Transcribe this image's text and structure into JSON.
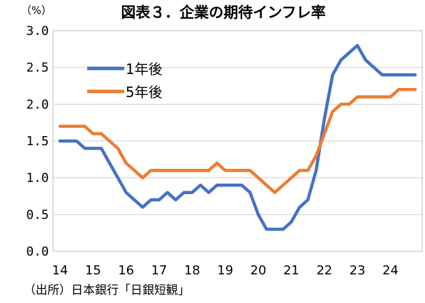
{
  "chart_data": {
    "type": "line",
    "title": "図表３．企業の期待インフレ率",
    "unit_label": "（%）",
    "source_note": "（出所）日本銀行「日銀短観」",
    "ylim": [
      0,
      3.0
    ],
    "y_ticks": [
      {
        "value": 0.0,
        "label": "0.0"
      },
      {
        "value": 0.5,
        "label": "0.5"
      },
      {
        "value": 1.0,
        "label": "1.0"
      },
      {
        "value": 1.5,
        "label": "1.5"
      },
      {
        "value": 2.0,
        "label": "2.0"
      },
      {
        "value": 2.5,
        "label": "2.5"
      },
      {
        "value": 3.0,
        "label": "3.0"
      }
    ],
    "xlim": [
      2014.0,
      2024.75
    ],
    "x_ticks": [
      {
        "value": 2014,
        "label": "14"
      },
      {
        "value": 2015,
        "label": "15"
      },
      {
        "value": 2016,
        "label": "16"
      },
      {
        "value": 2017,
        "label": "17"
      },
      {
        "value": 2018,
        "label": "18"
      },
      {
        "value": 2019,
        "label": "19"
      },
      {
        "value": 2020,
        "label": "20"
      },
      {
        "value": 2021,
        "label": "21"
      },
      {
        "value": 2022,
        "label": "22"
      },
      {
        "value": 2023,
        "label": "23"
      },
      {
        "value": 2024,
        "label": "24"
      }
    ],
    "grid": true,
    "legend": "top-left",
    "x": [
      2014.0,
      2014.25,
      2014.5,
      2014.75,
      2015.0,
      2015.25,
      2015.5,
      2015.75,
      2016.0,
      2016.25,
      2016.5,
      2016.75,
      2017.0,
      2017.25,
      2017.5,
      2017.75,
      2018.0,
      2018.25,
      2018.5,
      2018.75,
      2019.0,
      2019.25,
      2019.5,
      2019.75,
      2020.0,
      2020.25,
      2020.5,
      2020.75,
      2021.0,
      2021.25,
      2021.5,
      2021.75,
      2022.0,
      2022.25,
      2022.5,
      2022.75,
      2023.0,
      2023.25,
      2023.5,
      2023.75,
      2024.0,
      2024.25,
      2024.5,
      2024.75
    ],
    "series": [
      {
        "name": "1年後",
        "color": "#4472C4",
        "values": [
          1.5,
          1.5,
          1.5,
          1.4,
          1.4,
          1.4,
          1.2,
          1.0,
          0.8,
          0.7,
          0.6,
          0.7,
          0.7,
          0.8,
          0.7,
          0.8,
          0.8,
          0.9,
          0.8,
          0.9,
          0.9,
          0.9,
          0.9,
          0.8,
          0.5,
          0.3,
          0.3,
          0.3,
          0.4,
          0.6,
          0.7,
          1.1,
          1.8,
          2.4,
          2.6,
          2.7,
          2.8,
          2.6,
          2.5,
          2.4,
          2.4,
          2.4,
          2.4,
          2.4
        ]
      },
      {
        "name": "5年後",
        "color": "#ED7D31",
        "values": [
          1.7,
          1.7,
          1.7,
          1.7,
          1.6,
          1.6,
          1.5,
          1.4,
          1.2,
          1.1,
          1.0,
          1.1,
          1.1,
          1.1,
          1.1,
          1.1,
          1.1,
          1.1,
          1.1,
          1.2,
          1.1,
          1.1,
          1.1,
          1.1,
          1.0,
          0.9,
          0.8,
          0.9,
          1.0,
          1.1,
          1.1,
          1.3,
          1.6,
          1.9,
          2.0,
          2.0,
          2.1,
          2.1,
          2.1,
          2.1,
          2.1,
          2.2,
          2.2,
          2.2
        ]
      }
    ]
  }
}
